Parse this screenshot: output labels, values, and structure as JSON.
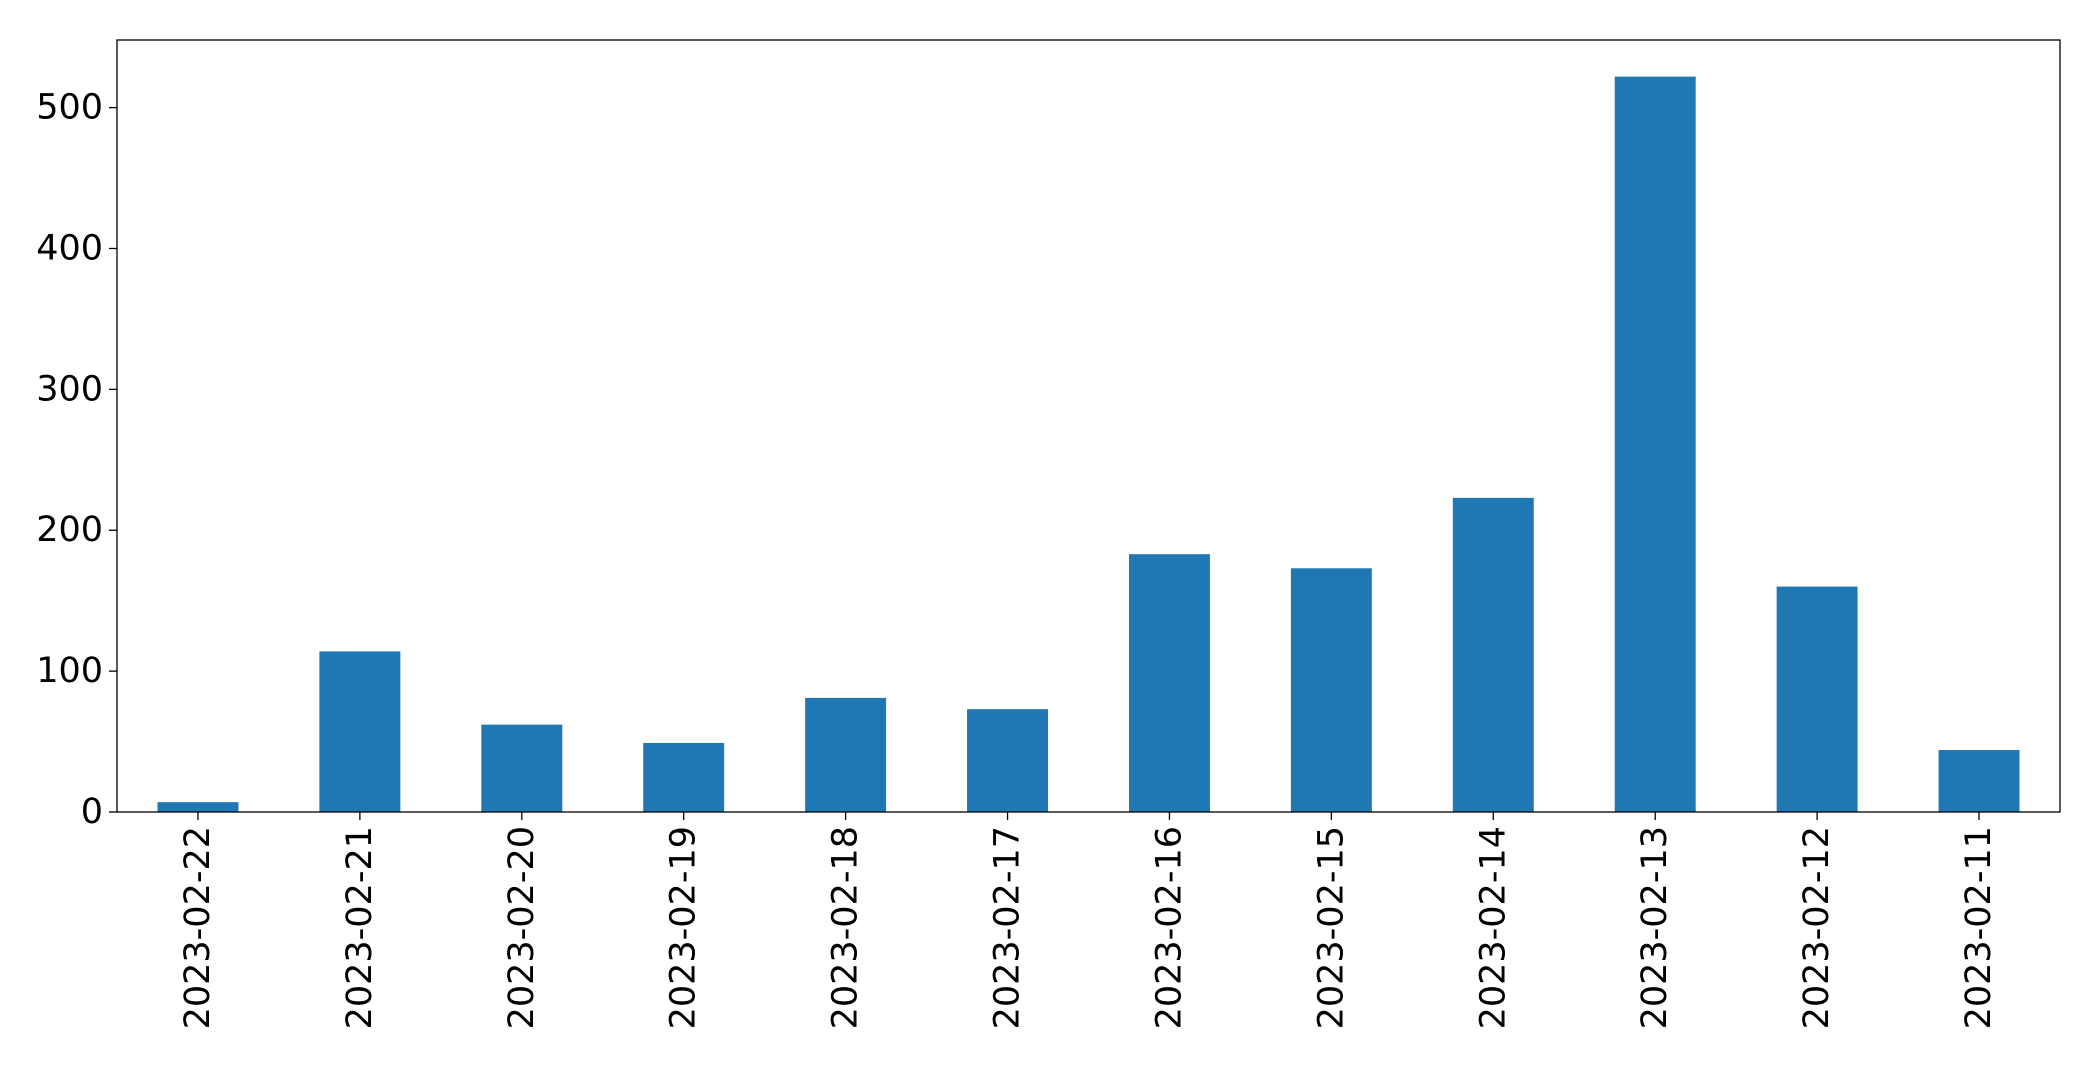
{
  "chart_data": {
    "type": "bar",
    "title": "",
    "xlabel": "",
    "ylabel": "",
    "categories": [
      "2023-02-22",
      "2023-02-21",
      "2023-02-20",
      "2023-02-19",
      "2023-02-18",
      "2023-02-17",
      "2023-02-16",
      "2023-02-15",
      "2023-02-14",
      "2023-02-13",
      "2023-02-12",
      "2023-02-11"
    ],
    "values": [
      7,
      114,
      62,
      49,
      81,
      73,
      183,
      173,
      223,
      522,
      160,
      44
    ],
    "ylim": [
      0,
      548
    ],
    "yticks": [
      0,
      100,
      200,
      300,
      400,
      500
    ],
    "grid": false,
    "legend": "none",
    "bar_color": "#1f77b4"
  }
}
